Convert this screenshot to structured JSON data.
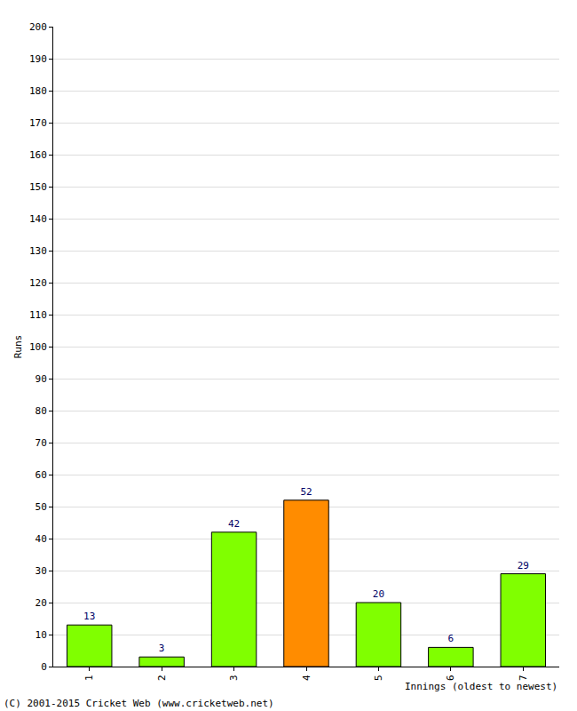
{
  "chart_data": {
    "type": "bar",
    "categories": [
      "1",
      "2",
      "3",
      "4",
      "5",
      "6",
      "7"
    ],
    "values": [
      13,
      3,
      42,
      52,
      20,
      6,
      29
    ],
    "colors": [
      "#80ff00",
      "#80ff00",
      "#80ff00",
      "#ff8c00",
      "#80ff00",
      "#80ff00",
      "#80ff00"
    ],
    "xlabel": "Innings (oldest to newest)",
    "ylabel": "Runs",
    "annotations": [
      "(C) 2001-2015 Cricket Web (www.cricketweb.net)"
    ],
    "ylim": [
      0,
      200
    ],
    "yticks": [
      0,
      10,
      20,
      30,
      40,
      50,
      60,
      70,
      80,
      90,
      100,
      110,
      120,
      130,
      140,
      150,
      160,
      170,
      180,
      190,
      200
    ],
    "grid": true,
    "data_labels": true
  }
}
